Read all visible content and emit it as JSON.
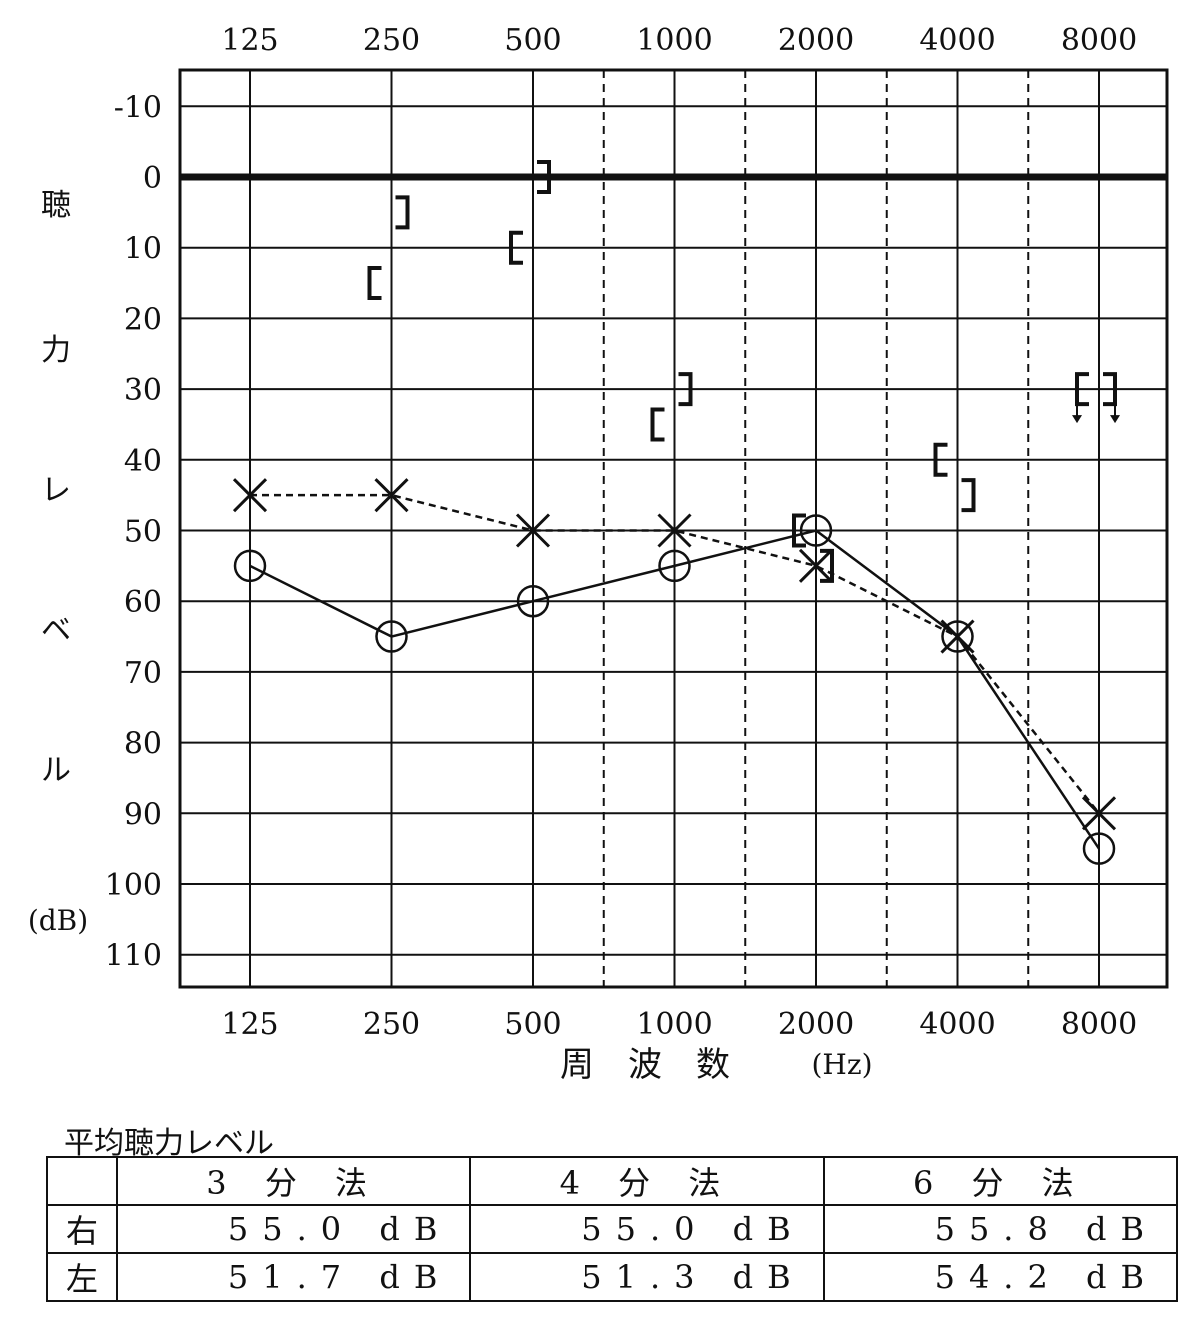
{
  "chart_data": {
    "type": "line",
    "y_axis_title": "聴力レベル",
    "y_unit": "(dB)",
    "x_axis_title": "周　波　数",
    "x_unit": "(Hz)",
    "x_categories": [
      "125",
      "250",
      "500",
      "1000",
      "2000",
      "4000",
      "8000"
    ],
    "ylim": [
      -15,
      115
    ],
    "y_ticks": [
      -10,
      0,
      10,
      20,
      30,
      40,
      50,
      60,
      70,
      80,
      90,
      100,
      110
    ],
    "y_inverted": true,
    "series": [
      {
        "marker": "circle",
        "line": "solid",
        "x": [
          "125",
          "250",
          "500",
          "1000",
          "2000",
          "4000",
          "8000"
        ],
        "values": [
          55,
          65,
          60,
          55,
          50,
          65,
          95
        ]
      },
      {
        "marker": "cross",
        "line": "dashed",
        "x": [
          "125",
          "250",
          "500",
          "1000",
          "2000",
          "4000",
          "8000"
        ],
        "values": [
          45,
          45,
          50,
          50,
          55,
          65,
          90
        ]
      },
      {
        "marker": "bracket-left",
        "x": [
          "250",
          "500",
          "1000",
          "2000",
          "4000",
          "8000"
        ],
        "values": [
          15,
          10,
          35,
          50,
          40,
          30
        ],
        "no_response": [
          false,
          false,
          false,
          false,
          false,
          true
        ]
      },
      {
        "marker": "bracket-right",
        "x": [
          "250",
          "500",
          "1000",
          "2000",
          "4000",
          "8000"
        ],
        "values": [
          5,
          0,
          30,
          55,
          45,
          30
        ],
        "no_response": [
          false,
          false,
          false,
          false,
          false,
          true
        ]
      }
    ]
  },
  "colors": {
    "ink": "#111111",
    "background": "#ffffff"
  },
  "average": {
    "title": "平均聴力レベル",
    "headers": [
      "",
      "3 分 法",
      "4 分 法",
      "6 分 法"
    ],
    "rows": [
      {
        "side": "右",
        "values": [
          "55.0 dB",
          "55.0 dB",
          "55.8 dB"
        ]
      },
      {
        "side": "左",
        "values": [
          "51.7 dB",
          "51.3 dB",
          "54.2 dB"
        ]
      }
    ]
  }
}
